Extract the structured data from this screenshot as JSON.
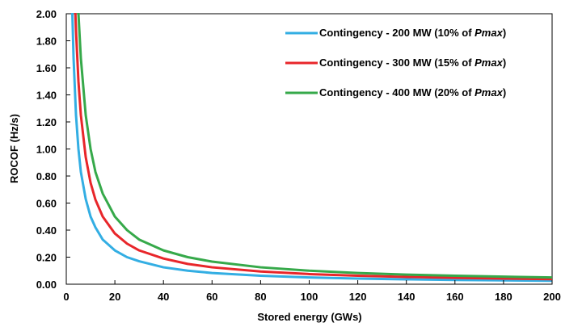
{
  "chart_data": {
    "type": "line",
    "title": "",
    "xlabel": "Stored energy (GWs)",
    "ylabel": "ROCOF (Hz/s)",
    "xlim": [
      0,
      200
    ],
    "ylim": [
      0,
      2
    ],
    "x_ticks": [
      "0",
      "20",
      "40",
      "60",
      "80",
      "100",
      "120",
      "140",
      "160",
      "180",
      "200"
    ],
    "y_ticks": [
      "0.00",
      "0.20",
      "0.40",
      "0.60",
      "0.80",
      "1.00",
      "1.20",
      "1.40",
      "1.60",
      "1.80",
      "2.00"
    ],
    "grid": false,
    "legend_position": "top-right",
    "series": [
      {
        "name": "Contingency - 200 MW (10% of Pmax)",
        "legend": {
          "prefix": "Contingency - 200 MW (10% of ",
          "emph": "Pmax",
          "suffix": ")"
        },
        "color": "#33aee3",
        "points": [
          [
            2.5,
            2.0
          ],
          [
            3,
            1.67
          ],
          [
            4,
            1.25
          ],
          [
            5,
            1.0
          ],
          [
            6,
            0.83
          ],
          [
            8,
            0.63
          ],
          [
            10,
            0.5
          ],
          [
            12,
            0.42
          ],
          [
            15,
            0.33
          ],
          [
            20,
            0.25
          ],
          [
            25,
            0.2
          ],
          [
            30,
            0.17
          ],
          [
            40,
            0.125
          ],
          [
            50,
            0.1
          ],
          [
            60,
            0.083
          ],
          [
            80,
            0.063
          ],
          [
            100,
            0.05
          ],
          [
            120,
            0.042
          ],
          [
            140,
            0.036
          ],
          [
            160,
            0.031
          ],
          [
            180,
            0.028
          ],
          [
            200,
            0.025
          ]
        ]
      },
      {
        "name": "Contingency - 300 MW (15% of Pmax)",
        "legend": {
          "prefix": "Contingency - 300 MW  (15% of ",
          "emph": "Pmax",
          "suffix": ")"
        },
        "color": "#e8262a",
        "points": [
          [
            3.75,
            2.0
          ],
          [
            4,
            1.875
          ],
          [
            5,
            1.5
          ],
          [
            6,
            1.25
          ],
          [
            8,
            0.94
          ],
          [
            10,
            0.75
          ],
          [
            12,
            0.625
          ],
          [
            15,
            0.5
          ],
          [
            20,
            0.375
          ],
          [
            25,
            0.3
          ],
          [
            30,
            0.25
          ],
          [
            40,
            0.19
          ],
          [
            50,
            0.15
          ],
          [
            60,
            0.125
          ],
          [
            80,
            0.094
          ],
          [
            100,
            0.075
          ],
          [
            120,
            0.063
          ],
          [
            140,
            0.054
          ],
          [
            160,
            0.047
          ],
          [
            180,
            0.042
          ],
          [
            200,
            0.0375
          ]
        ]
      },
      {
        "name": "Contingency - 400 MW (20% of Pmax)",
        "legend": {
          "prefix": "Contingency - 400 MW  (20% of ",
          "emph": "Pmax",
          "suffix": ")"
        },
        "color": "#36a94a",
        "points": [
          [
            5,
            2.0
          ],
          [
            6,
            1.67
          ],
          [
            8,
            1.25
          ],
          [
            10,
            1.0
          ],
          [
            12,
            0.83
          ],
          [
            15,
            0.67
          ],
          [
            20,
            0.5
          ],
          [
            25,
            0.4
          ],
          [
            30,
            0.33
          ],
          [
            40,
            0.25
          ],
          [
            50,
            0.2
          ],
          [
            60,
            0.167
          ],
          [
            80,
            0.125
          ],
          [
            100,
            0.1
          ],
          [
            120,
            0.083
          ],
          [
            140,
            0.071
          ],
          [
            160,
            0.0625
          ],
          [
            180,
            0.056
          ],
          [
            200,
            0.05
          ]
        ]
      }
    ]
  }
}
